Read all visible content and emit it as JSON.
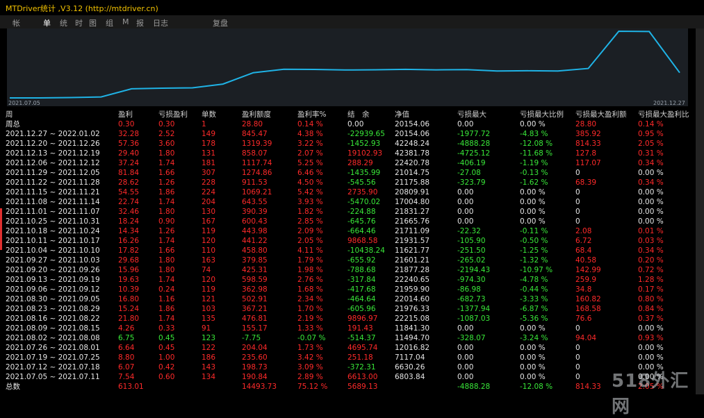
{
  "window": {
    "title": "MTDriver统计 ,V3.12 (http://mtdriver.cn)"
  },
  "tabs": [
    "帐",
    "单",
    "统",
    "时",
    "图",
    "组",
    "M",
    "报",
    "日志",
    "复盘"
  ],
  "chart": {
    "start_label": "2021.07.05",
    "end_label": "2021.12.27",
    "line_color": "#1fb3e6",
    "equity": [
      6614,
      6614,
      6804,
      7118,
      11495,
      11842,
      12017,
      14019,
      20154,
      21960,
      21877,
      21601,
      21711,
      21931,
      21665,
      21831,
      21075,
      21175,
      21015,
      22421,
      42382,
      42248,
      20154
    ]
  },
  "columns": [
    "周",
    "盈利",
    "亏损盈利",
    "单数",
    "盈利额度",
    "盈利率%",
    "结　余",
    "净值",
    "亏损最大",
    "亏损最大比例",
    "亏损最大盈利额",
    "亏损最大盈利比"
  ],
  "rows": [
    [
      "周总",
      "0.30",
      "0.30",
      "1",
      "28.80",
      "0.14 %",
      "0.00",
      "20154.06",
      "0.00",
      "0.00 %",
      "28.80",
      "0.14 %"
    ],
    [
      "2021.12.27 ~ 2022.01.02",
      "32.28",
      "2.52",
      "149",
      "845.47",
      "4.38 %",
      "-22939.65",
      "20154.06",
      "-1977.72",
      "-4.83 %",
      "385.92",
      "0.95 %"
    ],
    [
      "2021.12.20 ~ 2021.12.26",
      "57.36",
      "3.60",
      "178",
      "1319.39",
      "3.22 %",
      "-1452.93",
      "42248.24",
      "-4888.28",
      "-12.08 %",
      "814.33",
      "2.05 %"
    ],
    [
      "2021.12.13 ~ 2021.12.19",
      "29.40",
      "1.80",
      "131",
      "858.07",
      "2.07 %",
      "19102.93",
      "42381.78",
      "-4725.12",
      "-11.68 %",
      "127.8",
      "0.31 %"
    ],
    [
      "2021.12.06 ~ 2021.12.12",
      "37.24",
      "1.74",
      "181",
      "1117.74",
      "5.25 %",
      "288.29",
      "22420.78",
      "-406.19",
      "-1.19 %",
      "117.07",
      "0.34 %"
    ],
    [
      "2021.11.29 ~ 2021.12.05",
      "81.84",
      "1.66",
      "307",
      "1274.86",
      "6.46 %",
      "-1435.99",
      "21014.75",
      "-27.08",
      "-0.13 %",
      "0",
      "0.00 %"
    ],
    [
      "2021.11.22 ~ 2021.11.28",
      "28.62",
      "1.26",
      "228",
      "911.53",
      "4.50 %",
      "-545.56",
      "21175.88",
      "-323.79",
      "-1.62 %",
      "68.39",
      "0.34 %"
    ],
    [
      "2021.11.15 ~ 2021.11.21",
      "54.55",
      "1.86",
      "224",
      "1069.21",
      "5.42 %",
      "2735.90",
      "20809.91",
      "0.00",
      "0.00 %",
      "0",
      "0.00 %"
    ],
    [
      "2021.11.08 ~ 2021.11.14",
      "22.74",
      "1.74",
      "204",
      "643.55",
      "3.93 %",
      "-5470.02",
      "17004.80",
      "0.00",
      "0.00 %",
      "0",
      "0.00 %"
    ],
    [
      "2021.11.01 ~ 2021.11.07",
      "32.46",
      "1.80",
      "130",
      "390.39",
      "1.82 %",
      "-224.88",
      "21831.27",
      "0.00",
      "0.00 %",
      "0",
      "0.00 %"
    ],
    [
      "2021.10.25 ~ 2021.10.31",
      "18.24",
      "0.90",
      "167",
      "600.43",
      "2.85 %",
      "-645.76",
      "21665.76",
      "0.00",
      "0.00 %",
      "0",
      "0.00 %"
    ],
    [
      "2021.10.18 ~ 2021.10.24",
      "14.34",
      "1.26",
      "119",
      "443.98",
      "2.09 %",
      "-664.46",
      "21711.09",
      "-22.32",
      "-0.11 %",
      "2.08",
      "0.01 %"
    ],
    [
      "2021.10.11 ~ 2021.10.17",
      "16.26",
      "1.74",
      "120",
      "441.22",
      "2.05 %",
      "9868.58",
      "21931.57",
      "-105.90",
      "-0.50 %",
      "6.72",
      "0.03 %"
    ],
    [
      "2021.10.04 ~ 2021.10.10",
      "17.82",
      "1.66",
      "110",
      "458.80",
      "4.11 %",
      "-10438.24",
      "11621.77",
      "-251.50",
      "-1.25 %",
      "68.4",
      "0.34 %"
    ],
    [
      "2021.09.27 ~ 2021.10.03",
      "29.68",
      "1.80",
      "163",
      "379.85",
      "1.79 %",
      "-655.92",
      "21601.21",
      "-265.02",
      "-1.32 %",
      "40.58",
      "0.20 %"
    ],
    [
      "2021.09.20 ~ 2021.09.26",
      "15.96",
      "1.80",
      "74",
      "425.31",
      "1.98 %",
      "-788.68",
      "21877.28",
      "-2194.43",
      "-10.97 %",
      "142.99",
      "0.72 %"
    ],
    [
      "2021.09.13 ~ 2021.09.19",
      "19.63",
      "1.74",
      "120",
      "598.59",
      "2.76 %",
      "-317.84",
      "22240.65",
      "-974.30",
      "-4.78 %",
      "259.9",
      "1.28 %"
    ],
    [
      "2021.09.06 ~ 2021.09.12",
      "10.39",
      "0.24",
      "119",
      "362.98",
      "1.68 %",
      "-417.68",
      "21959.90",
      "-86.98",
      "-0.44 %",
      "34.8",
      "0.17 %"
    ],
    [
      "2021.08.30 ~ 2021.09.05",
      "16.80",
      "1.16",
      "121",
      "502.91",
      "2.34 %",
      "-464.64",
      "22014.60",
      "-682.73",
      "-3.33 %",
      "160.82",
      "0.80 %"
    ],
    [
      "2021.08.23 ~ 2021.08.29",
      "15.24",
      "1.86",
      "103",
      "367.21",
      "1.70 %",
      "-605.96",
      "21976.33",
      "-1377.94",
      "-6.87 %",
      "168.58",
      "0.84 %"
    ],
    [
      "2021.08.16 ~ 2021.08.22",
      "21.80",
      "1.74",
      "135",
      "476.81",
      "2.19 %",
      "9896.97",
      "22215.08",
      "-1087.03",
      "-5.36 %",
      "76.6",
      "0.37 %"
    ],
    [
      "2021.08.09 ~ 2021.08.15",
      "4.26",
      "0.33",
      "91",
      "155.17",
      "1.33 %",
      "191.43",
      "11841.30",
      "0.00",
      "0.00 %",
      "0",
      "0.00 %"
    ],
    [
      "2021.08.02 ~ 2021.08.08",
      "6.75",
      "0.45",
      "123",
      "-7.75",
      "-0.07 %",
      "-514.37",
      "11494.70",
      "-328.07",
      "-3.24 %",
      "94.04",
      "0.93 %"
    ],
    [
      "2021.07.26 ~ 2021.08.01",
      "6.64",
      "0.45",
      "122",
      "204.04",
      "1.73 %",
      "4695.74",
      "12016.82",
      "0.00",
      "0.00 %",
      "0",
      "0.00 %"
    ],
    [
      "2021.07.19 ~ 2021.07.25",
      "8.80",
      "1.00",
      "186",
      "235.60",
      "3.42 %",
      "251.18",
      "7117.04",
      "0.00",
      "0.00 %",
      "0",
      "0.00 %"
    ],
    [
      "2021.07.12 ~ 2021.07.18",
      "6.07",
      "0.42",
      "143",
      "198.73",
      "3.09 %",
      "-372.31",
      "6630.26",
      "0.00",
      "0.00 %",
      "0",
      "0.00 %"
    ],
    [
      "2021.07.05 ~ 2021.07.11",
      "7.54",
      "0.60",
      "134",
      "190.84",
      "2.89 %",
      "6613.00",
      "6803.84",
      "0.00",
      "0.00 %",
      "0",
      "0.00 %"
    ],
    [
      "总数",
      "613.01",
      "",
      "",
      "14493.73",
      "75.12 %",
      "5689.13",
      "",
      "-4888.28",
      "-12.08 %",
      "814.33",
      "2.05 %"
    ]
  ],
  "watermark": "518外汇网"
}
